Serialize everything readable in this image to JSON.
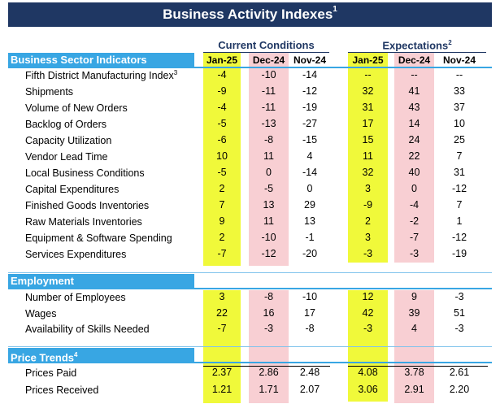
{
  "title": "Business Activity Indexes",
  "title_note": "1",
  "groups": {
    "current": "Current Conditions",
    "expectations": "Expectations",
    "expectations_note": "2"
  },
  "columns": [
    "Jan-25",
    "Dec-24",
    "Nov-24",
    "Jan-25",
    "Dec-24",
    "Nov-24"
  ],
  "sections": [
    {
      "title": "Business Sector Indicators",
      "note": "",
      "rows": [
        {
          "label": "Fifth District Manufacturing Index",
          "note": "3",
          "values": [
            "-4",
            "-10",
            "-14",
            "--",
            "--",
            "--"
          ]
        },
        {
          "label": "Shipments",
          "note": "",
          "values": [
            "-9",
            "-11",
            "-12",
            "32",
            "41",
            "33"
          ]
        },
        {
          "label": "Volume of New Orders",
          "note": "",
          "values": [
            "-4",
            "-11",
            "-19",
            "31",
            "43",
            "37"
          ]
        },
        {
          "label": "Backlog of Orders",
          "note": "",
          "values": [
            "-5",
            "-13",
            "-27",
            "17",
            "14",
            "10"
          ]
        },
        {
          "label": "Capacity Utilization",
          "note": "",
          "values": [
            "-6",
            "-8",
            "-15",
            "15",
            "24",
            "25"
          ]
        },
        {
          "label": "Vendor Lead Time",
          "note": "",
          "values": [
            "10",
            "11",
            "4",
            "11",
            "22",
            "7"
          ]
        },
        {
          "label": "Local Business Conditions",
          "note": "",
          "values": [
            "-5",
            "0",
            "-14",
            "32",
            "40",
            "31"
          ]
        },
        {
          "label": "Capital Expenditures",
          "note": "",
          "values": [
            "2",
            "-5",
            "0",
            "3",
            "0",
            "-12"
          ]
        },
        {
          "label": "Finished Goods Inventories",
          "note": "",
          "values": [
            "7",
            "13",
            "29",
            "-9",
            "-4",
            "7"
          ]
        },
        {
          "label": "Raw Materials Inventories",
          "note": "",
          "values": [
            "9",
            "11",
            "13",
            "2",
            "-2",
            "1"
          ]
        },
        {
          "label": "Equipment & Software Spending",
          "note": "",
          "values": [
            "2",
            "-10",
            "-1",
            "3",
            "-7",
            "-12"
          ]
        },
        {
          "label": "Services Expenditures",
          "note": "",
          "values": [
            "-7",
            "-12",
            "-20",
            "-3",
            "-3",
            "-19"
          ]
        }
      ]
    },
    {
      "title": "Employment",
      "note": "",
      "rows": [
        {
          "label": "Number of Employees",
          "note": "",
          "values": [
            "3",
            "-8",
            "-10",
            "12",
            "9",
            "-3"
          ]
        },
        {
          "label": "Wages",
          "note": "",
          "values": [
            "22",
            "16",
            "17",
            "42",
            "39",
            "51"
          ]
        },
        {
          "label": "Availability of Skills Needed",
          "note": "",
          "values": [
            "-7",
            "-3",
            "-8",
            "-3",
            "4",
            "-3"
          ]
        }
      ]
    },
    {
      "title": "Price Trends",
      "note": "4",
      "rows": [
        {
          "label": "Prices Paid",
          "note": "",
          "values": [
            "2.37",
            "2.86",
            "2.48",
            "4.08",
            "3.78",
            "2.61"
          ]
        },
        {
          "label": "Prices Received",
          "note": "",
          "values": [
            "1.21",
            "1.71",
            "2.07",
            "3.06",
            "2.91",
            "2.20"
          ]
        }
      ]
    }
  ],
  "colors": {
    "title_bg": "#1f3763",
    "section_bg": "#38a6e3",
    "highlight_current": "#f0f93a",
    "highlight_previous": "#f8cfd3"
  }
}
